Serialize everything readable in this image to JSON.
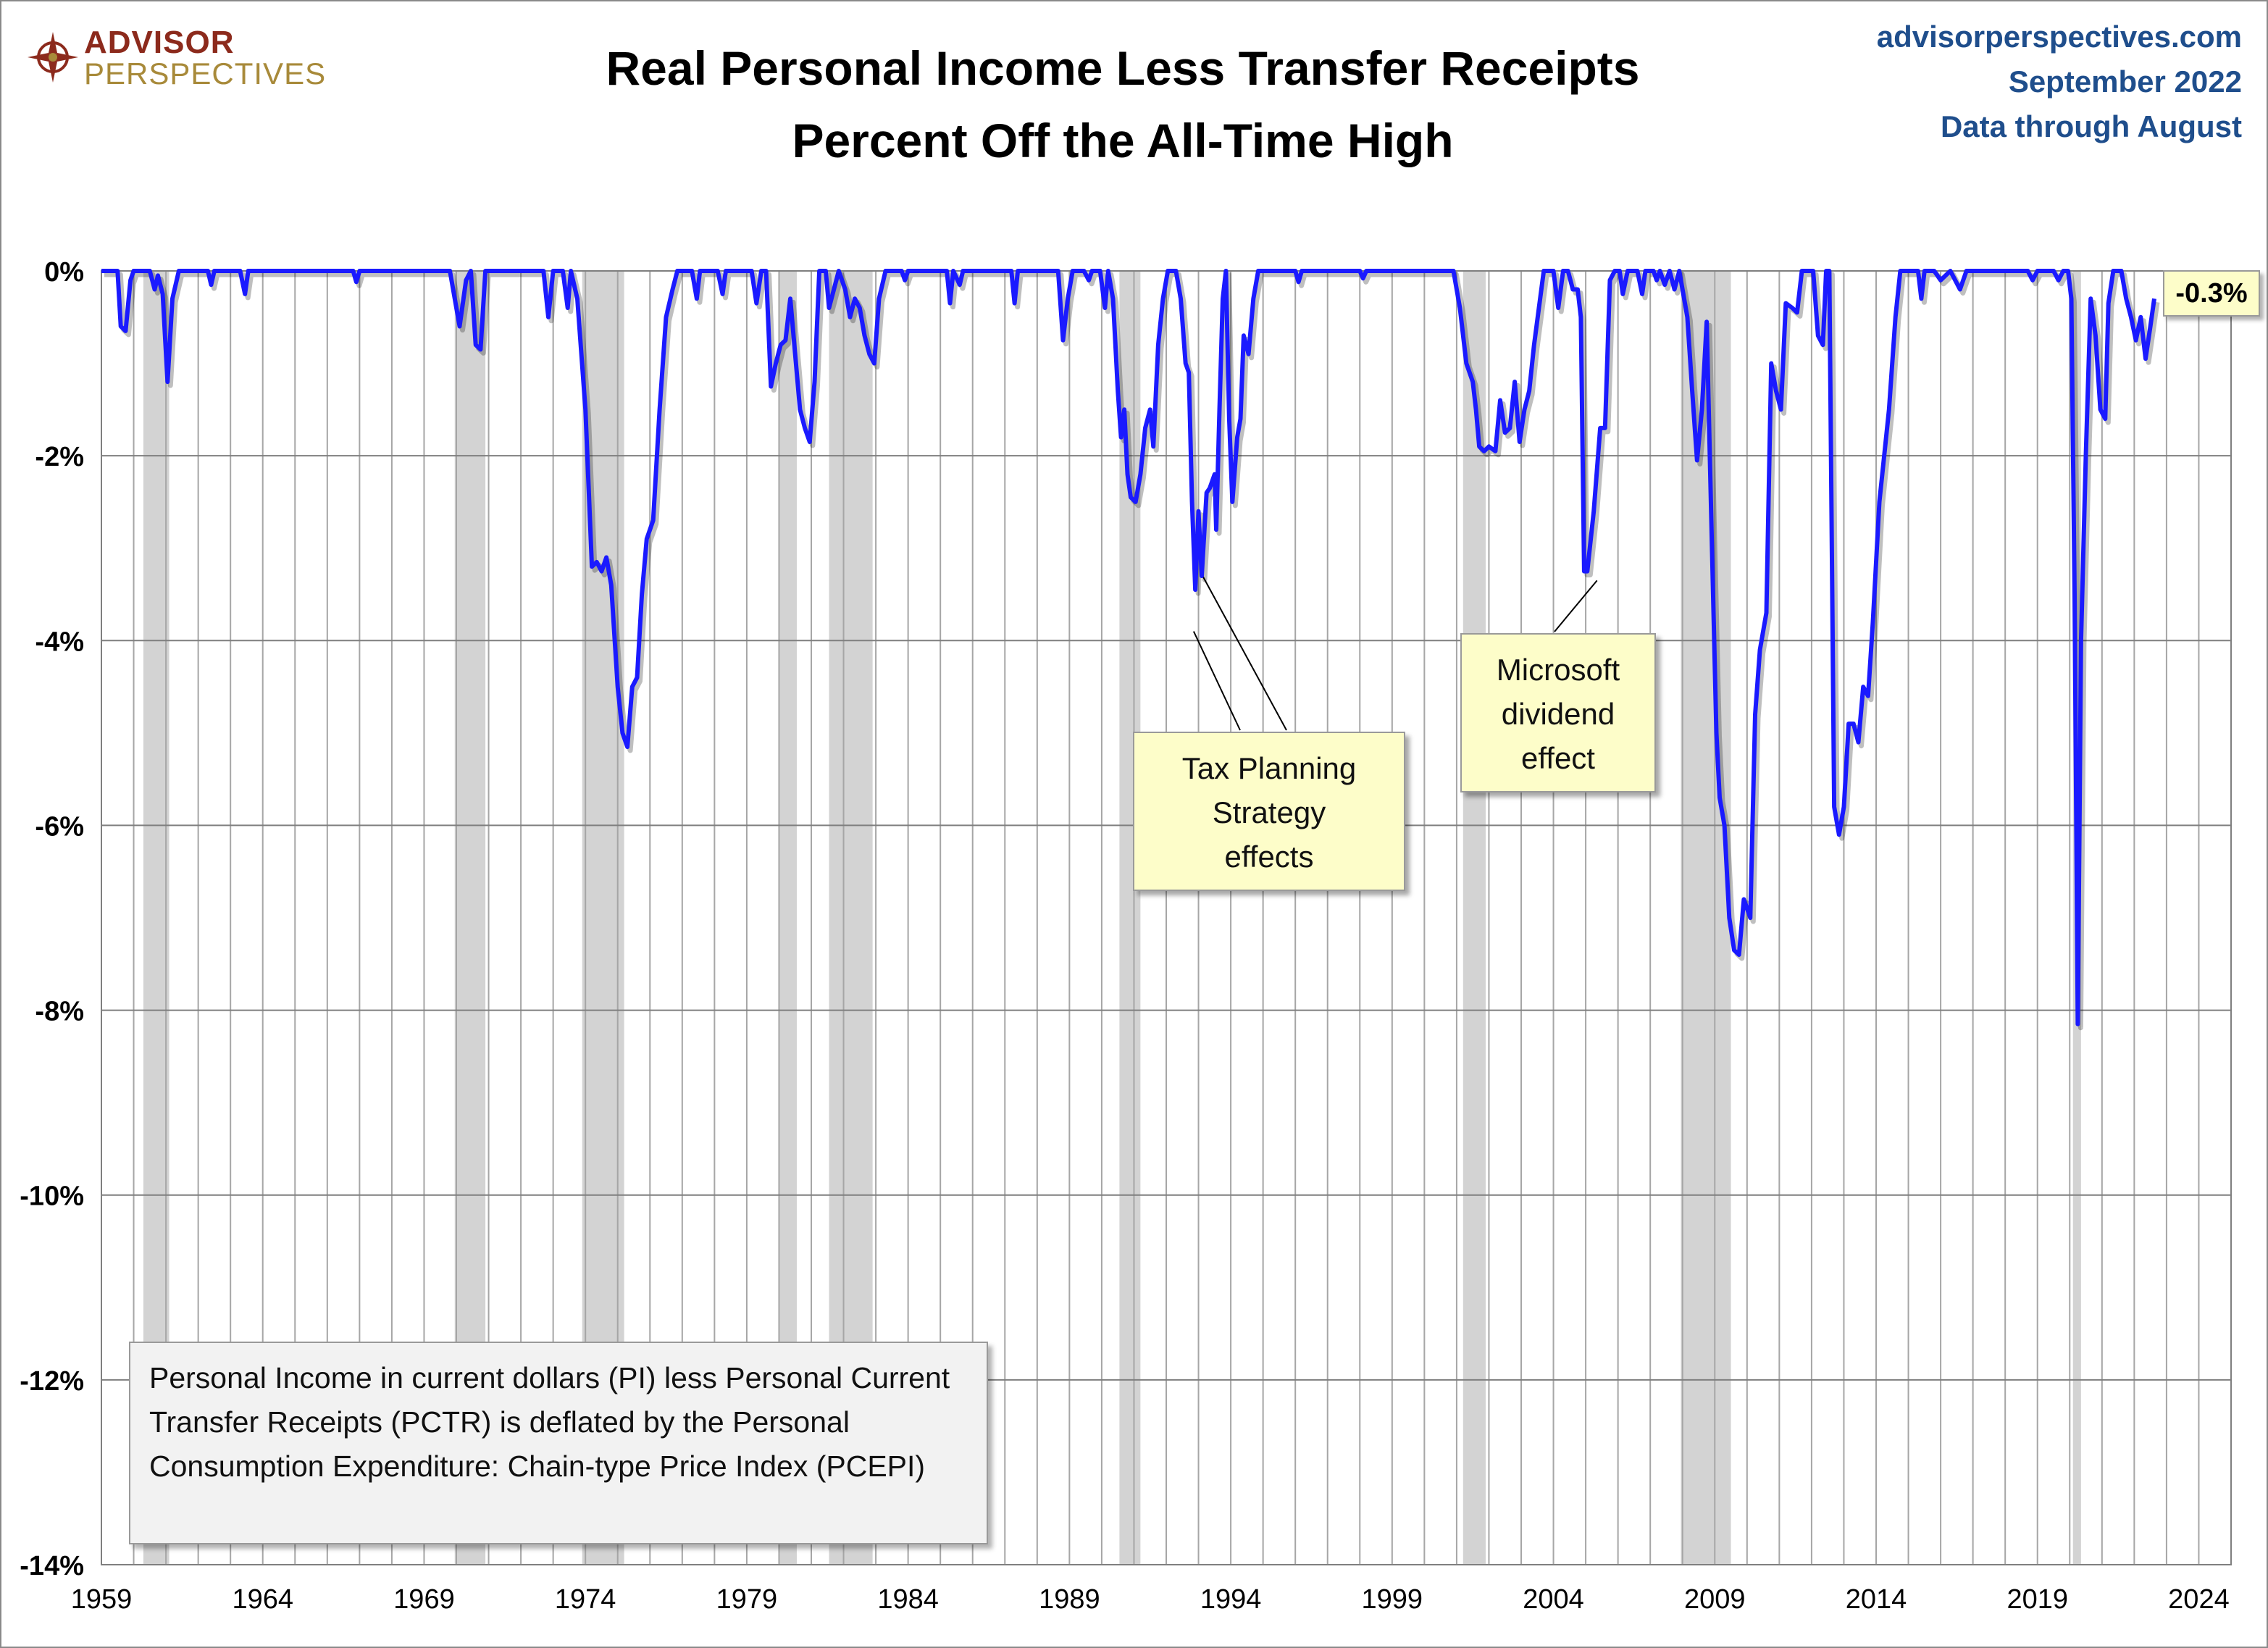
{
  "header": {
    "logo_line1": "ADVISOR",
    "logo_line2": "PERSPECTIVES",
    "title_line1": "Real Personal Income Less Transfer Receipts",
    "title_line2": "Percent Off the All-Time High",
    "source_site": "advisorperspectives.com",
    "source_date": "September 2022",
    "source_through": "Data through August"
  },
  "annotations": {
    "tax_line1": "Tax Planning",
    "tax_line2": "Strategy",
    "tax_line3": "effects",
    "ms_line1": "Microsoft",
    "ms_line2": "dividend",
    "ms_line3": "effect",
    "info_text": "Personal Income in current dollars  (PI) less Personal Current Transfer Receipts (PCTR) is deflated by the Personal Consumption Expenditure: Chain-type Price Index (PCEPI)",
    "last_value_label": "-0.3%"
  },
  "colors": {
    "series": "#1a1aff",
    "recession": "#d3d3d3",
    "grid": "#a6a6a6",
    "source_text": "#1f4e8c"
  },
  "chart_data": {
    "type": "line",
    "title": "Real Personal Income Less Transfer Receipts Percent Off the All-Time High",
    "xlabel": "",
    "ylabel": "",
    "xlim": [
      1959,
      2025
    ],
    "ylim": [
      -14,
      0
    ],
    "x_ticks": [
      "1959",
      "1964",
      "1969",
      "1974",
      "1979",
      "1984",
      "1989",
      "1994",
      "1999",
      "2004",
      "2009",
      "2014",
      "2019",
      "2024"
    ],
    "y_ticks": [
      "0%",
      "-2%",
      "-4%",
      "-6%",
      "-8%",
      "-10%",
      "-12%",
      "-14%"
    ],
    "grid": true,
    "recessions": [
      [
        1960.3,
        1961.1
      ],
      [
        1969.95,
        1970.9
      ],
      [
        1973.9,
        1975.2
      ],
      [
        1980.0,
        1980.55
      ],
      [
        1981.55,
        1982.9
      ],
      [
        1990.55,
        1991.2
      ],
      [
        2001.2,
        2001.9
      ],
      [
        2007.95,
        2009.5
      ],
      [
        2020.1,
        2020.35
      ]
    ],
    "series": [
      {
        "name": "",
        "points": [
          [
            1959.0,
            0
          ],
          [
            1959.5,
            0
          ],
          [
            1959.6,
            -0.6
          ],
          [
            1959.75,
            -0.65
          ],
          [
            1959.9,
            -0.1
          ],
          [
            1960.0,
            0
          ],
          [
            1960.5,
            0
          ],
          [
            1960.65,
            -0.2
          ],
          [
            1960.75,
            -0.05
          ],
          [
            1960.9,
            -0.25
          ],
          [
            1961.05,
            -1.2
          ],
          [
            1961.2,
            -0.3
          ],
          [
            1961.4,
            0
          ],
          [
            1962.3,
            0
          ],
          [
            1962.4,
            -0.15
          ],
          [
            1962.5,
            0
          ],
          [
            1963.3,
            0
          ],
          [
            1963.45,
            -0.25
          ],
          [
            1963.55,
            0
          ],
          [
            1966.8,
            0
          ],
          [
            1966.9,
            -0.12
          ],
          [
            1967.0,
            0
          ],
          [
            1969.8,
            0
          ],
          [
            1969.95,
            -0.3
          ],
          [
            1970.1,
            -0.6
          ],
          [
            1970.3,
            -0.1
          ],
          [
            1970.45,
            0
          ],
          [
            1970.6,
            -0.8
          ],
          [
            1970.75,
            -0.85
          ],
          [
            1970.9,
            0
          ],
          [
            1972.7,
            0
          ],
          [
            1972.85,
            -0.5
          ],
          [
            1973.0,
            0
          ],
          [
            1973.3,
            0
          ],
          [
            1973.45,
            -0.4
          ],
          [
            1973.55,
            0
          ],
          [
            1973.75,
            -0.3
          ],
          [
            1974.0,
            -1.5
          ],
          [
            1974.2,
            -3.2
          ],
          [
            1974.35,
            -3.15
          ],
          [
            1974.5,
            -3.25
          ],
          [
            1974.65,
            -3.1
          ],
          [
            1974.8,
            -3.4
          ],
          [
            1975.0,
            -4.5
          ],
          [
            1975.15,
            -5.0
          ],
          [
            1975.3,
            -5.15
          ],
          [
            1975.45,
            -4.5
          ],
          [
            1975.6,
            -4.4
          ],
          [
            1975.75,
            -3.5
          ],
          [
            1975.9,
            -2.9
          ],
          [
            1976.1,
            -2.7
          ],
          [
            1976.3,
            -1.5
          ],
          [
            1976.5,
            -0.5
          ],
          [
            1976.7,
            -0.2
          ],
          [
            1976.85,
            0
          ],
          [
            1977.3,
            0
          ],
          [
            1977.45,
            -0.3
          ],
          [
            1977.55,
            0
          ],
          [
            1978.1,
            0
          ],
          [
            1978.25,
            -0.25
          ],
          [
            1978.35,
            0
          ],
          [
            1979.15,
            0
          ],
          [
            1979.3,
            -0.35
          ],
          [
            1979.45,
            0
          ],
          [
            1979.6,
            0
          ],
          [
            1979.75,
            -1.25
          ],
          [
            1979.9,
            -1.0
          ],
          [
            1980.05,
            -0.8
          ],
          [
            1980.2,
            -0.75
          ],
          [
            1980.35,
            -0.3
          ],
          [
            1980.5,
            -0.9
          ],
          [
            1980.65,
            -1.5
          ],
          [
            1980.8,
            -1.7
          ],
          [
            1980.95,
            -1.85
          ],
          [
            1981.1,
            -1.2
          ],
          [
            1981.25,
            0
          ],
          [
            1981.45,
            0
          ],
          [
            1981.55,
            -0.4
          ],
          [
            1981.7,
            -0.2
          ],
          [
            1981.85,
            0
          ],
          [
            1982.05,
            -0.2
          ],
          [
            1982.2,
            -0.5
          ],
          [
            1982.35,
            -0.3
          ],
          [
            1982.5,
            -0.4
          ],
          [
            1982.65,
            -0.7
          ],
          [
            1982.8,
            -0.9
          ],
          [
            1982.95,
            -1.0
          ],
          [
            1983.1,
            -0.3
          ],
          [
            1983.3,
            0
          ],
          [
            1983.8,
            0
          ],
          [
            1983.9,
            -0.1
          ],
          [
            1984.0,
            0
          ],
          [
            1985.2,
            0
          ],
          [
            1985.3,
            -0.35
          ],
          [
            1985.4,
            0
          ],
          [
            1985.6,
            -0.15
          ],
          [
            1985.7,
            0
          ],
          [
            1987.2,
            0
          ],
          [
            1987.3,
            -0.35
          ],
          [
            1987.4,
            0
          ],
          [
            1988.65,
            0
          ],
          [
            1988.8,
            -0.75
          ],
          [
            1988.95,
            -0.3
          ],
          [
            1989.1,
            0
          ],
          [
            1989.45,
            0
          ],
          [
            1989.6,
            -0.1
          ],
          [
            1989.7,
            0
          ],
          [
            1989.95,
            0
          ],
          [
            1990.1,
            -0.4
          ],
          [
            1990.2,
            0
          ],
          [
            1990.35,
            -0.3
          ],
          [
            1990.5,
            -1.3
          ],
          [
            1990.6,
            -1.8
          ],
          [
            1990.7,
            -1.5
          ],
          [
            1990.8,
            -2.2
          ],
          [
            1990.9,
            -2.45
          ],
          [
            1991.05,
            -2.5
          ],
          [
            1991.2,
            -2.2
          ],
          [
            1991.35,
            -1.7
          ],
          [
            1991.5,
            -1.5
          ],
          [
            1991.6,
            -1.9
          ],
          [
            1991.75,
            -0.8
          ],
          [
            1991.9,
            -0.3
          ],
          [
            1992.05,
            0
          ],
          [
            1992.3,
            0
          ],
          [
            1992.45,
            -0.3
          ],
          [
            1992.6,
            -1.0
          ],
          [
            1992.7,
            -1.1
          ],
          [
            1992.8,
            -2.5
          ],
          [
            1992.9,
            -3.45
          ],
          [
            1993.0,
            -2.6
          ],
          [
            1993.1,
            -3.3
          ],
          [
            1993.25,
            -2.4
          ],
          [
            1993.35,
            -2.35
          ],
          [
            1993.5,
            -2.2
          ],
          [
            1993.55,
            -2.8
          ],
          [
            1993.65,
            -1.5
          ],
          [
            1993.75,
            -0.3
          ],
          [
            1993.85,
            0
          ],
          [
            1993.95,
            -1.6
          ],
          [
            1994.05,
            -2.5
          ],
          [
            1994.2,
            -1.8
          ],
          [
            1994.3,
            -1.6
          ],
          [
            1994.4,
            -0.7
          ],
          [
            1994.55,
            -0.9
          ],
          [
            1994.7,
            -0.3
          ],
          [
            1994.85,
            0
          ],
          [
            1995.2,
            0
          ],
          [
            1996.0,
            0
          ],
          [
            1996.1,
            -0.12
          ],
          [
            1996.2,
            0
          ],
          [
            1998.0,
            0
          ],
          [
            1998.1,
            -0.08
          ],
          [
            1998.2,
            0
          ],
          [
            2000.9,
            0
          ],
          [
            2001.1,
            -0.4
          ],
          [
            2001.3,
            -1.0
          ],
          [
            2001.5,
            -1.2
          ],
          [
            2001.6,
            -1.5
          ],
          [
            2001.7,
            -1.9
          ],
          [
            2001.85,
            -1.95
          ],
          [
            2002.0,
            -1.9
          ],
          [
            2002.2,
            -1.95
          ],
          [
            2002.35,
            -1.4
          ],
          [
            2002.5,
            -1.75
          ],
          [
            2002.65,
            -1.7
          ],
          [
            2002.8,
            -1.2
          ],
          [
            2002.95,
            -1.85
          ],
          [
            2003.1,
            -1.5
          ],
          [
            2003.25,
            -1.3
          ],
          [
            2003.4,
            -0.8
          ],
          [
            2003.55,
            -0.4
          ],
          [
            2003.7,
            0
          ],
          [
            2004.0,
            0
          ],
          [
            2004.15,
            -0.4
          ],
          [
            2004.3,
            0
          ],
          [
            2004.45,
            0
          ],
          [
            2004.6,
            -0.2
          ],
          [
            2004.75,
            -0.2
          ],
          [
            2004.85,
            -0.5
          ],
          [
            2004.95,
            -3.25
          ],
          [
            2005.05,
            -3.25
          ],
          [
            2005.25,
            -2.6
          ],
          [
            2005.45,
            -1.7
          ],
          [
            2005.6,
            -1.7
          ],
          [
            2005.75,
            -0.1
          ],
          [
            2005.9,
            0
          ],
          [
            2006.05,
            0
          ],
          [
            2006.15,
            -0.25
          ],
          [
            2006.3,
            0
          ],
          [
            2006.6,
            0
          ],
          [
            2006.75,
            -0.25
          ],
          [
            2006.85,
            0
          ],
          [
            2007.1,
            0
          ],
          [
            2007.2,
            -0.1
          ],
          [
            2007.3,
            0
          ],
          [
            2007.45,
            -0.15
          ],
          [
            2007.6,
            0
          ],
          [
            2007.75,
            -0.2
          ],
          [
            2007.9,
            0
          ],
          [
            2008.0,
            -0.2
          ],
          [
            2008.15,
            -0.5
          ],
          [
            2008.3,
            -1.3
          ],
          [
            2008.45,
            -2.05
          ],
          [
            2008.6,
            -1.5
          ],
          [
            2008.75,
            -0.55
          ],
          [
            2008.9,
            -2.8
          ],
          [
            2009.05,
            -5.0
          ],
          [
            2009.15,
            -5.7
          ],
          [
            2009.3,
            -6.0
          ],
          [
            2009.45,
            -7.0
          ],
          [
            2009.6,
            -7.35
          ],
          [
            2009.75,
            -7.4
          ],
          [
            2009.9,
            -6.8
          ],
          [
            2010.1,
            -7.0
          ],
          [
            2010.25,
            -4.8
          ],
          [
            2010.4,
            -4.1
          ],
          [
            2010.6,
            -3.7
          ],
          [
            2010.75,
            -1.0
          ],
          [
            2010.9,
            -1.3
          ],
          [
            2011.05,
            -1.5
          ],
          [
            2011.2,
            -0.35
          ],
          [
            2011.4,
            -0.4
          ],
          [
            2011.55,
            -0.45
          ],
          [
            2011.7,
            0
          ],
          [
            2012.05,
            0
          ],
          [
            2012.2,
            -0.7
          ],
          [
            2012.35,
            -0.8
          ],
          [
            2012.45,
            0
          ],
          [
            2012.55,
            0
          ],
          [
            2012.7,
            -5.8
          ],
          [
            2012.85,
            -6.1
          ],
          [
            2013.0,
            -5.8
          ],
          [
            2013.15,
            -4.9
          ],
          [
            2013.3,
            -4.9
          ],
          [
            2013.45,
            -5.1
          ],
          [
            2013.6,
            -4.5
          ],
          [
            2013.75,
            -4.6
          ],
          [
            2013.9,
            -3.8
          ],
          [
            2014.1,
            -2.5
          ],
          [
            2014.4,
            -1.5
          ],
          [
            2014.6,
            -0.5
          ],
          [
            2014.75,
            0
          ],
          [
            2015.3,
            0
          ],
          [
            2015.4,
            -0.3
          ],
          [
            2015.5,
            0
          ],
          [
            2015.8,
            0
          ],
          [
            2016.0,
            -0.1
          ],
          [
            2016.3,
            0
          ],
          [
            2016.6,
            -0.2
          ],
          [
            2016.8,
            0
          ],
          [
            2018.7,
            0
          ],
          [
            2018.85,
            -0.1
          ],
          [
            2019.0,
            0
          ],
          [
            2019.5,
            0
          ],
          [
            2019.65,
            -0.1
          ],
          [
            2019.8,
            0
          ],
          [
            2019.95,
            0
          ],
          [
            2020.05,
            -0.3
          ],
          [
            2020.15,
            -3.5
          ],
          [
            2020.25,
            -8.15
          ],
          [
            2020.35,
            -4.0
          ],
          [
            2020.5,
            -2.0
          ],
          [
            2020.65,
            -0.3
          ],
          [
            2020.8,
            -0.7
          ],
          [
            2020.95,
            -1.5
          ],
          [
            2021.1,
            -1.6
          ],
          [
            2021.2,
            -0.35
          ],
          [
            2021.35,
            0
          ],
          [
            2021.6,
            0
          ],
          [
            2021.75,
            -0.3
          ],
          [
            2021.9,
            -0.5
          ],
          [
            2022.05,
            -0.75
          ],
          [
            2022.2,
            -0.5
          ],
          [
            2022.35,
            -0.95
          ],
          [
            2022.5,
            -0.6
          ],
          [
            2022.62,
            -0.3
          ]
        ]
      }
    ]
  }
}
